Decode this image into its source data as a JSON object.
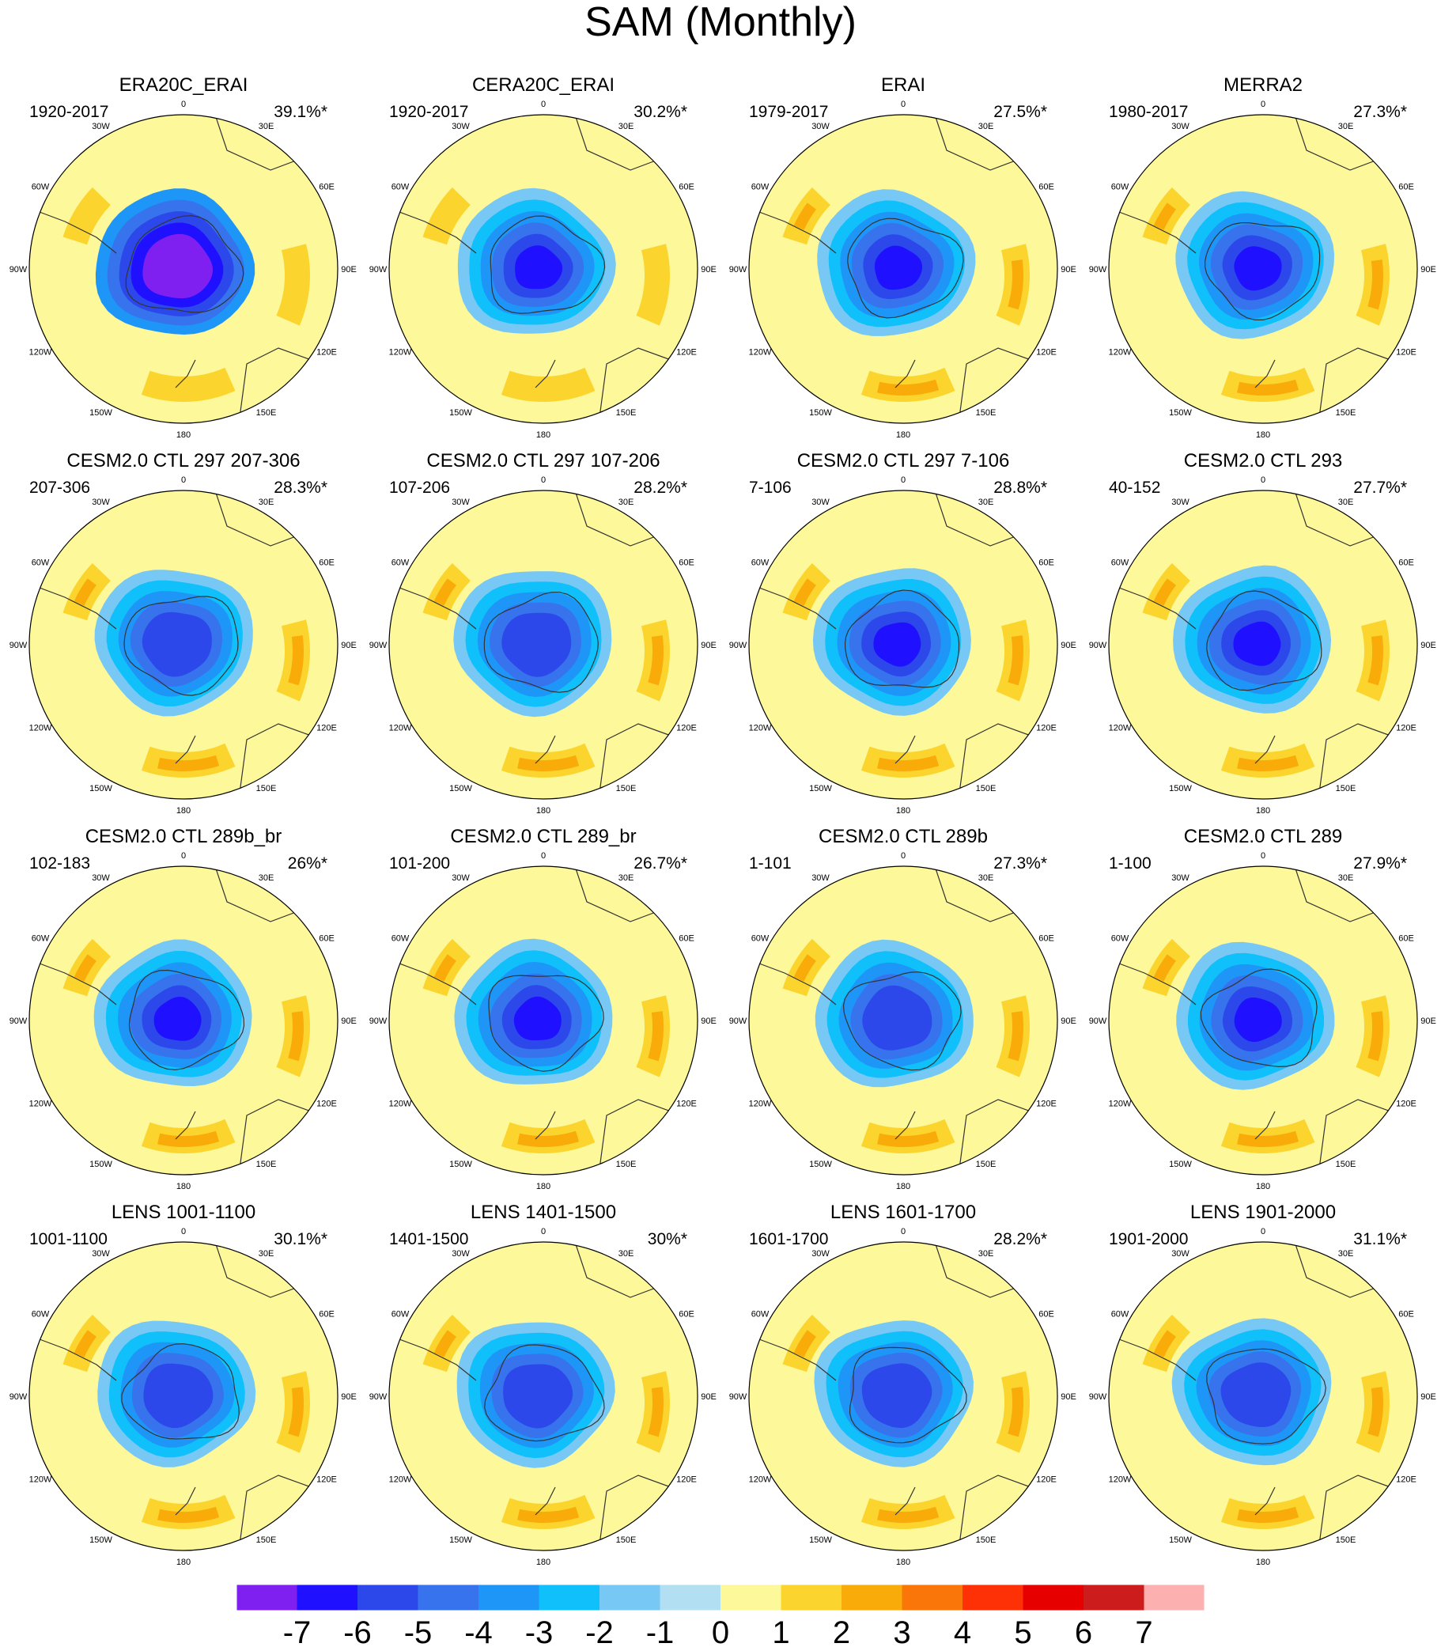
{
  "title": "SAM (Monthly)",
  "lon_labels": [
    "0",
    "30E",
    "60E",
    "90E",
    "120E",
    "150E",
    "180",
    "150W",
    "120W",
    "90W",
    "60W",
    "30W"
  ],
  "panels": [
    {
      "title": "ERA20C_ERAI",
      "period": "1920-2017",
      "variance": "39.1%*",
      "lows": [
        -3,
        -4,
        -5,
        -6,
        -7
      ],
      "highs": [
        1,
        2
      ]
    },
    {
      "title": "CERA20C_ERAI",
      "period": "1920-2017",
      "variance": "30.2%*",
      "lows": [
        -1,
        -2,
        -3,
        -4,
        -5,
        -6
      ],
      "highs": [
        1,
        2
      ]
    },
    {
      "title": "ERAI",
      "period": "1979-2017",
      "variance": "27.5%*",
      "lows": [
        -1,
        -2,
        -3,
        -4,
        -5,
        -6
      ],
      "highs": [
        1,
        2,
        3
      ]
    },
    {
      "title": "MERRA2",
      "period": "1980-2017",
      "variance": "27.3%*",
      "lows": [
        -1,
        -2,
        -3,
        -4,
        -5,
        -6
      ],
      "highs": [
        1,
        2,
        3
      ]
    },
    {
      "title": "CESM2.0 CTL 297 207-306",
      "period": "207-306",
      "variance": "28.3%*",
      "lows": [
        -1,
        -2,
        -3,
        -4,
        -5
      ],
      "highs": [
        1,
        2,
        3
      ]
    },
    {
      "title": "CESM2.0 CTL 297 107-206",
      "period": "107-206",
      "variance": "28.2%*",
      "lows": [
        -1,
        -2,
        -3,
        -4,
        -5
      ],
      "highs": [
        1,
        2,
        3
      ]
    },
    {
      "title": "CESM2.0 CTL 297 7-106",
      "period": "7-106",
      "variance": "28.8%*",
      "lows": [
        -1,
        -2,
        -3,
        -4,
        -5,
        -6
      ],
      "highs": [
        1,
        2,
        3
      ]
    },
    {
      "title": "CESM2.0 CTL 293",
      "period": "40-152",
      "variance": "27.7%*",
      "lows": [
        -1,
        -2,
        -3,
        -4,
        -5,
        -6
      ],
      "highs": [
        1,
        2,
        3
      ]
    },
    {
      "title": "CESM2.0 CTL 289b_br",
      "period": "102-183",
      "variance": "26%*",
      "lows": [
        -1,
        -2,
        -3,
        -4,
        -5,
        -6
      ],
      "highs": [
        1,
        2,
        3
      ]
    },
    {
      "title": "CESM2.0 CTL 289_br",
      "period": "101-200",
      "variance": "26.7%*",
      "lows": [
        -1,
        -2,
        -3,
        -4,
        -5,
        -6
      ],
      "highs": [
        1,
        2,
        3
      ]
    },
    {
      "title": "CESM2.0 CTL 289b",
      "period": "1-101",
      "variance": "27.3%*",
      "lows": [
        -1,
        -2,
        -3,
        -4,
        -5
      ],
      "highs": [
        1,
        2,
        3
      ]
    },
    {
      "title": "CESM2.0 CTL 289",
      "period": "1-100",
      "variance": "27.9%*",
      "lows": [
        -1,
        -2,
        -3,
        -4,
        -5,
        -6
      ],
      "highs": [
        1,
        2,
        3
      ]
    },
    {
      "title": "LENS 1001-1100",
      "period": "1001-1100",
      "variance": "30.1%*",
      "lows": [
        -1,
        -2,
        -3,
        -4,
        -5
      ],
      "highs": [
        1,
        2,
        3
      ]
    },
    {
      "title": "LENS 1401-1500",
      "period": "1401-1500",
      "variance": "30%*",
      "lows": [
        -1,
        -2,
        -3,
        -4,
        -5
      ],
      "highs": [
        1,
        2,
        3
      ]
    },
    {
      "title": "LENS 1601-1700",
      "period": "1601-1700",
      "variance": "28.2%*",
      "lows": [
        -1,
        -2,
        -3,
        -4,
        -5
      ],
      "highs": [
        1,
        2,
        3
      ]
    },
    {
      "title": "LENS 1901-2000",
      "period": "1901-2000",
      "variance": "31.1%*",
      "lows": [
        -1,
        -2,
        -3,
        -4,
        -5
      ],
      "highs": [
        1,
        2,
        3
      ]
    }
  ],
  "colorbar": {
    "labels": [
      "-7",
      "-6",
      "-5",
      "-4",
      "-3",
      "-2",
      "-1",
      "0",
      "1",
      "2",
      "3",
      "4",
      "5",
      "6",
      "7"
    ],
    "colors": [
      "#8020f0",
      "#1f10ff",
      "#2d48ea",
      "#3673ec",
      "#1e96f8",
      "#0fc0fa",
      "#78c8f5",
      "#b3dff3",
      "#fdf89a",
      "#fbd52e",
      "#f9ab0a",
      "#fa7608",
      "#fd3105",
      "#e60000",
      "#cc1c1c",
      "#fdb0b0"
    ]
  },
  "colors": {
    "background": "#fdf89a",
    "coast": "#333333"
  }
}
